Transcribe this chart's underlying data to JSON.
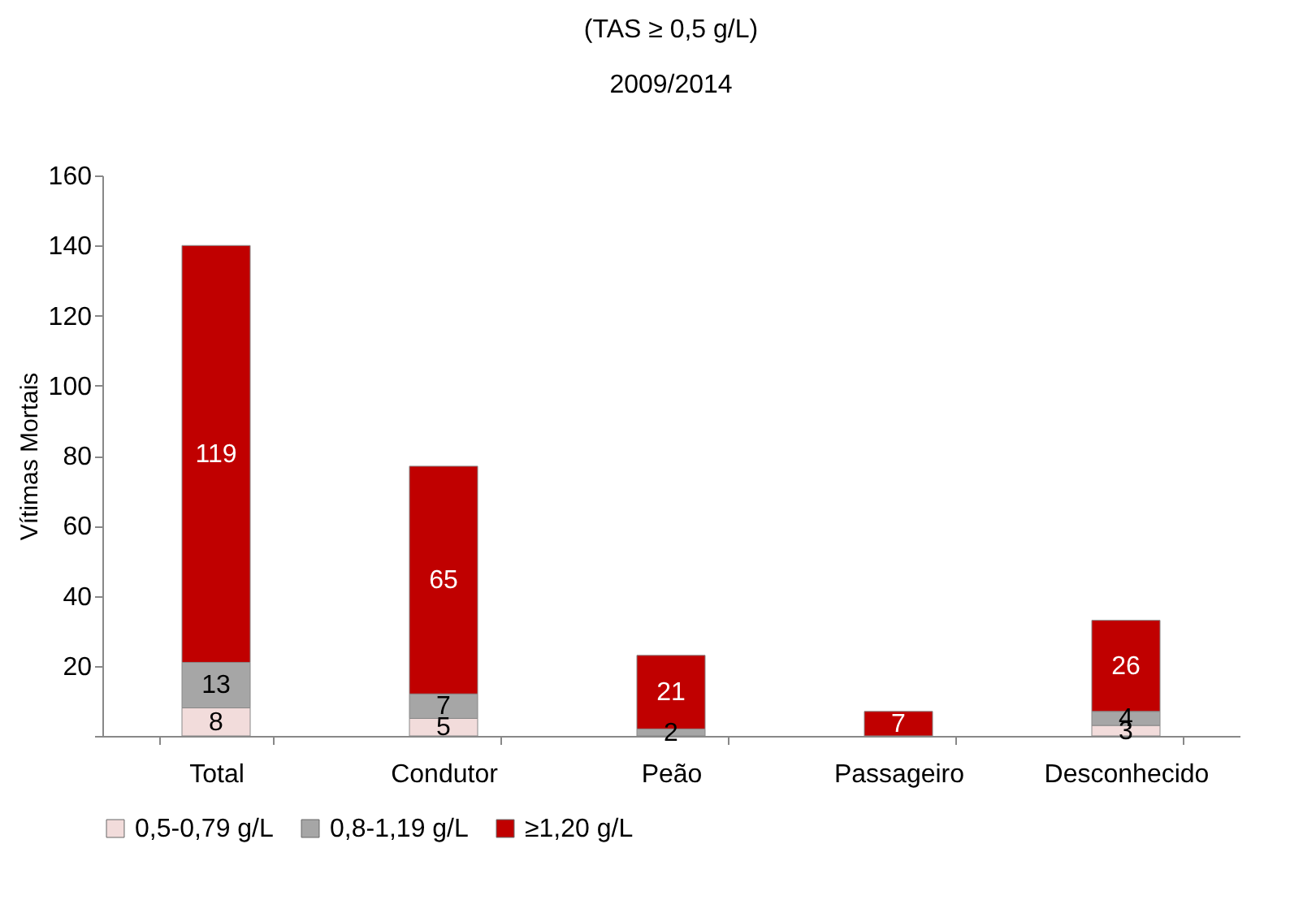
{
  "chart_data": {
    "type": "bar",
    "title": "(TAS ≥ 0,5 g/L)",
    "subtitle": "2009/2014",
    "ylabel": "Vítimas Mortais",
    "categories": [
      "Total",
      "Condutor",
      "Peão",
      "Passageiro",
      "Desconhecido"
    ],
    "stacked": true,
    "legend": "bottom",
    "grid": false,
    "ylim": [
      0,
      160
    ],
    "yticks": [
      {
        "value": 0,
        "label": null
      },
      20,
      40,
      60,
      80,
      100,
      120,
      140,
      160
    ],
    "series": [
      {
        "name": "0,5-0,79 g/L",
        "color": "#f2dcdb",
        "values": [
          8,
          5,
          0,
          0,
          3
        ],
        "value_labels": [
          "8",
          "5",
          null,
          null,
          "3"
        ]
      },
      {
        "name": "0,8-1,19 g/L",
        "color": "#a6a6a6",
        "values": [
          13,
          7,
          2,
          0,
          4
        ],
        "value_labels": [
          "13",
          "7",
          "2",
          null,
          "4"
        ]
      },
      {
        "name": "≥1,20 g/L",
        "color": "#c00000",
        "values": [
          119,
          65,
          21,
          7,
          26
        ],
        "value_labels": [
          "119",
          "65",
          "21",
          "7",
          "26"
        ]
      }
    ]
  }
}
